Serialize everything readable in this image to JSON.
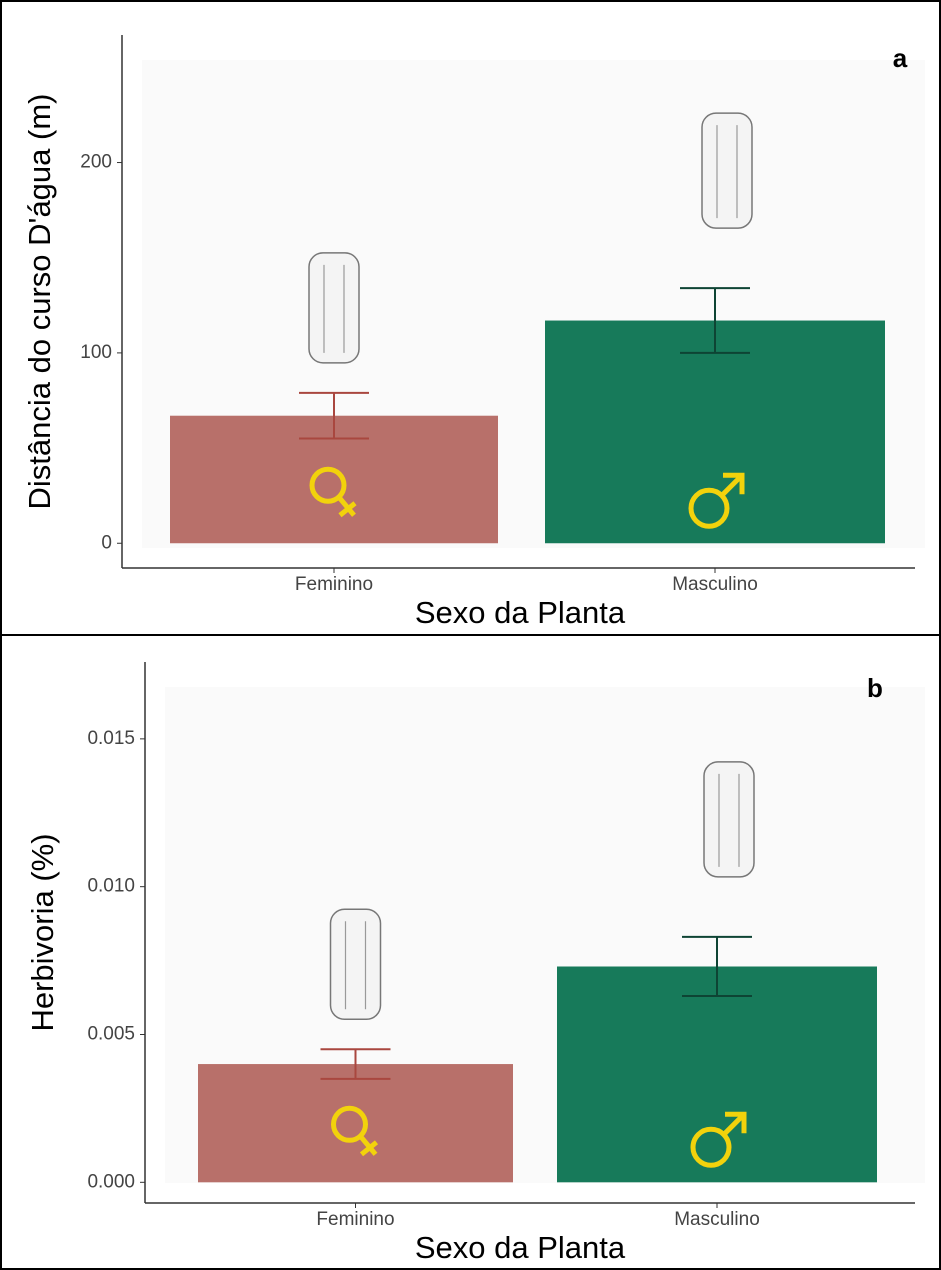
{
  "chart_data": [
    {
      "type": "bar",
      "panel_label": "a",
      "ylabel": "Distância do curso D'água (m)",
      "xlabel": "Sexo da Planta",
      "categories": [
        "Feminino",
        "Masculino"
      ],
      "values": [
        67,
        117
      ],
      "errors": [
        12,
        17
      ],
      "colors": [
        "#b8706a",
        "#177a5a"
      ],
      "error_colors": [
        "#a9473f",
        "#0e4434"
      ],
      "ylim": [
        -13,
        267
      ],
      "yticks": [
        0,
        100,
        200
      ]
    },
    {
      "type": "bar",
      "panel_label": "b",
      "ylabel": "Herbivoria (%)",
      "xlabel": "Sexo da Planta",
      "categories": [
        "Feminino",
        "Masculino"
      ],
      "values": [
        0.004,
        0.0073
      ],
      "errors": [
        0.0005,
        0.001
      ],
      "colors": [
        "#b8706a",
        "#177a5a"
      ],
      "error_colors": [
        "#a9473f",
        "#0e4434"
      ],
      "ylim": [
        -0.0007,
        0.0176
      ],
      "yticks": [
        {
          "value": 0,
          "label": "0.000"
        },
        {
          "value": 0.005,
          "label": "0.005"
        },
        {
          "value": 0.01,
          "label": "0.010"
        },
        {
          "value": 0.015,
          "label": "0.015"
        }
      ]
    }
  ]
}
